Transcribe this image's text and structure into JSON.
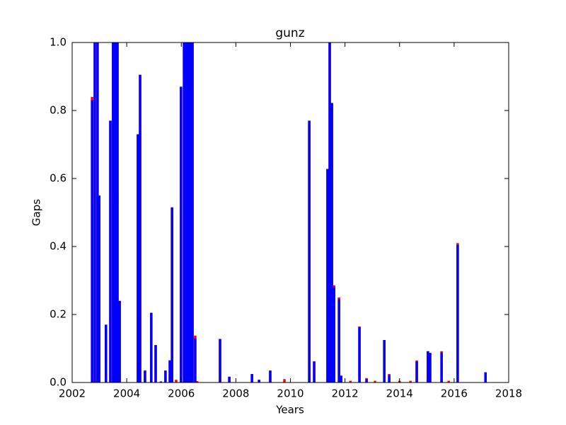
{
  "chart_data": {
    "type": "bar",
    "title": "gunz",
    "x_label": "Years",
    "y_label": "Gaps",
    "x": [
      2002.73,
      2002.83,
      2002.93,
      2002.99,
      2003.24,
      2003.4,
      2003.5,
      2003.58,
      2003.66,
      2003.74,
      2004.41,
      2004.49,
      2004.67,
      2004.9,
      2005.06,
      2005.25,
      2005.42,
      2005.58,
      2005.66,
      2005.81,
      2005.99,
      2006.1,
      2006.18,
      2006.25,
      2006.33,
      2006.41,
      2006.51,
      2006.58,
      2007.42,
      2007.76,
      2008.59,
      2008.85,
      2009.26,
      2009.78,
      2010.69,
      2010.87,
      2011.36,
      2011.44,
      2011.52,
      2011.6,
      2011.78,
      2011.86,
      2012.2,
      2012.53,
      2012.79,
      2013.1,
      2013.44,
      2013.62,
      2014.0,
      2014.4,
      2014.63,
      2015.04,
      2015.12,
      2015.54,
      2015.8,
      2016.13,
      2017.15
    ],
    "series": [
      {
        "color": "#ff0000",
        "values": [
          0.84,
          1,
          1,
          0.55,
          0.17,
          0.77,
          1,
          1,
          1,
          0.24,
          0.73,
          0.905,
          0.035,
          0.205,
          0.11,
          0.003,
          0.035,
          0.065,
          0.515,
          0.008,
          0.87,
          1,
          1,
          1,
          1,
          1,
          0.138,
          0.004,
          0.128,
          0.017,
          0.025,
          0.008,
          0.035,
          0.01,
          0.77,
          0.062,
          0.628,
          1,
          0.822,
          0.286,
          0.25,
          0.02,
          0.005,
          0.165,
          0.013,
          0.005,
          0.125,
          0.025,
          0.005,
          0.005,
          0.065,
          0.092,
          0.087,
          0.092,
          0.005,
          0.41,
          0.03
        ]
      },
      {
        "color": "#0000ff",
        "values": [
          0.83,
          1,
          1,
          0.55,
          0.17,
          0.77,
          1,
          1,
          1,
          0.24,
          0.73,
          0.905,
          0.035,
          0.205,
          0.11,
          0.003,
          0.035,
          0.065,
          0.515,
          null,
          0.87,
          1,
          1,
          1,
          1,
          1,
          0.13,
          null,
          0.128,
          0.017,
          0.025,
          0.008,
          0.035,
          null,
          0.77,
          0.062,
          0.628,
          1,
          0.822,
          0.28,
          0.245,
          0.02,
          null,
          0.163,
          0.01,
          null,
          0.125,
          0.022,
          null,
          null,
          0.062,
          0.092,
          0.087,
          0.088,
          null,
          0.405,
          0.03
        ]
      }
    ],
    "xlim": [
      2002,
      2018
    ],
    "xticks": [
      2002,
      2004,
      2006,
      2008,
      2010,
      2012,
      2014,
      2016,
      2018
    ],
    "ylim": [
      0,
      1
    ],
    "yticks": [
      {
        "value": 0,
        "label": "0.0"
      },
      {
        "value": 0.2,
        "label": "0.2"
      },
      {
        "value": 0.4,
        "label": "0.4"
      },
      {
        "value": 0.6,
        "label": "0.6"
      },
      {
        "value": 0.8,
        "label": "0.8"
      },
      {
        "value": 1,
        "label": "1.0"
      }
    ],
    "grid": false
  }
}
